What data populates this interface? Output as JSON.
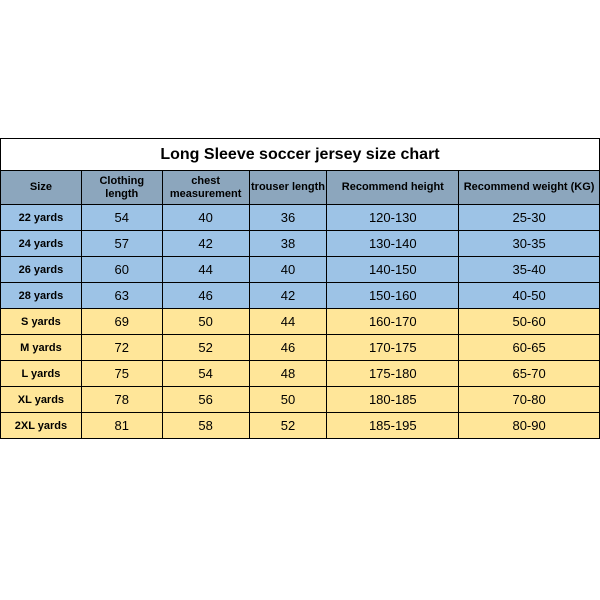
{
  "table": {
    "title": "Long Sleeve soccer jersey size chart",
    "columns": [
      "Size",
      "Clothing length",
      "chest measurement",
      "trouser length",
      "Recommend height",
      "Recommend weight (KG)"
    ],
    "rows": [
      {
        "group": "blue",
        "cells": [
          "22 yards",
          "54",
          "40",
          "36",
          "120-130",
          "25-30"
        ]
      },
      {
        "group": "blue",
        "cells": [
          "24 yards",
          "57",
          "42",
          "38",
          "130-140",
          "30-35"
        ]
      },
      {
        "group": "blue",
        "cells": [
          "26 yards",
          "60",
          "44",
          "40",
          "140-150",
          "35-40"
        ]
      },
      {
        "group": "blue",
        "cells": [
          "28 yards",
          "63",
          "46",
          "42",
          "150-160",
          "40-50"
        ]
      },
      {
        "group": "yellow",
        "cells": [
          "S yards",
          "69",
          "50",
          "44",
          "160-170",
          "50-60"
        ]
      },
      {
        "group": "yellow",
        "cells": [
          "M yards",
          "72",
          "52",
          "46",
          "170-175",
          "60-65"
        ]
      },
      {
        "group": "yellow",
        "cells": [
          "L yards",
          "75",
          "54",
          "48",
          "175-180",
          "65-70"
        ]
      },
      {
        "group": "yellow",
        "cells": [
          "XL yards",
          "78",
          "56",
          "50",
          "180-185",
          "70-80"
        ]
      },
      {
        "group": "yellow",
        "cells": [
          "2XL yards",
          "81",
          "58",
          "52",
          "185-195",
          "80-90"
        ]
      }
    ],
    "colors": {
      "header_bg": "#8ca6bd",
      "blue_bg": "#9dc3e6",
      "yellow_bg": "#ffe699",
      "border": "#000000",
      "background": "#ffffff"
    },
    "column_widths_pct": [
      13.5,
      13.5,
      14.5,
      13,
      22,
      23.5
    ]
  }
}
